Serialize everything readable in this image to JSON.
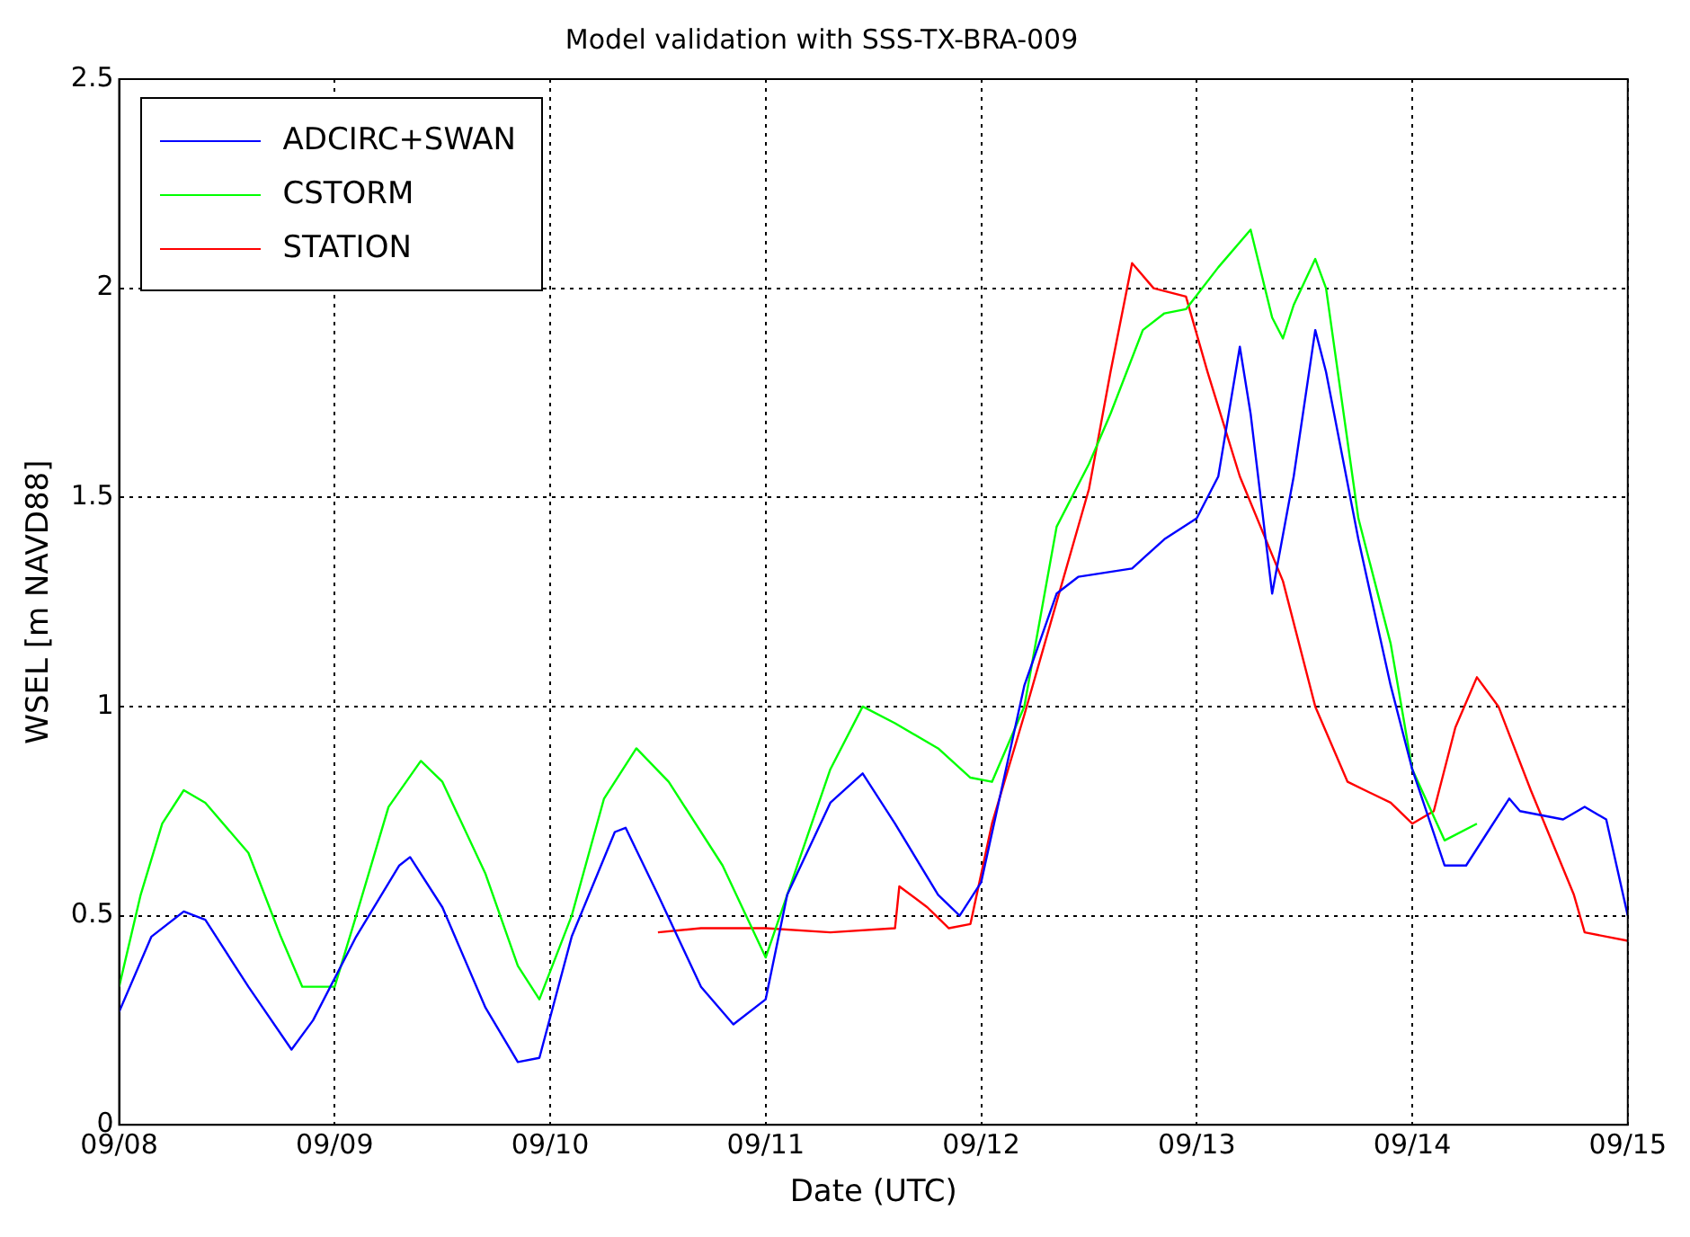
{
  "chart_data": {
    "type": "line",
    "title": "Model validation with SSS-TX-BRA-009",
    "xlabel": "Date (UTC)",
    "ylabel": "WSEL [m NAVD88]",
    "xlim": [
      "--09-08",
      "--09-15"
    ],
    "xticks": [
      {
        "value": "--09-08",
        "label": "09/08"
      },
      {
        "value": "--09-09",
        "label": "09/09"
      },
      {
        "value": "--09-10",
        "label": "09/10"
      },
      {
        "value": "--09-11",
        "label": "09/11"
      },
      {
        "value": "--09-12",
        "label": "09/12"
      },
      {
        "value": "--09-13",
        "label": "09/13"
      },
      {
        "value": "--09-14",
        "label": "09/14"
      },
      {
        "value": "--09-15",
        "label": "09/15"
      }
    ],
    "ylim": [
      0,
      2.5
    ],
    "yticks": [
      {
        "value": 0,
        "label": "0"
      },
      {
        "value": 0.5,
        "label": "0.5"
      },
      {
        "value": 1,
        "label": "1"
      },
      {
        "value": 1.5,
        "label": "1.5"
      },
      {
        "value": 2,
        "label": "2"
      },
      {
        "value": 2.5,
        "label": "2.5"
      }
    ],
    "grid": true,
    "legend": "top left",
    "marker": "none",
    "line_style": "solid",
    "series": [
      {
        "name": "ADCIRC+SWAN",
        "color": "#0000ff",
        "x": [
          "--09-08T00:00",
          "--09-08T03:36",
          "--09-08T07:12",
          "--09-08T09:36",
          "--09-08T14:24",
          "--09-08T19:12",
          "--09-08T21:36",
          "--09-09T02:24",
          "--09-09T07:12",
          "--09-09T08:24",
          "--09-09T12:00",
          "--09-09T16:48",
          "--09-09T20:24",
          "--09-09T22:48",
          "--09-10T02:24",
          "--09-10T07:12",
          "--09-10T08:24",
          "--09-10T12:00",
          "--09-10T16:48",
          "--09-10T20:24",
          "--09-11T00:00",
          "--09-11T02:24",
          "--09-11T07:12",
          "--09-11T10:48",
          "--09-11T14:24",
          "--09-11T19:12",
          "--09-11T21:36",
          "--09-12T00:00",
          "--09-12T04:48",
          "--09-12T08:24",
          "--09-12T10:48",
          "--09-12T16:48",
          "--09-12T20:24",
          "--09-13T00:00",
          "--09-13T02:24",
          "--09-13T04:48",
          "--09-13T06:00",
          "--09-13T08:24",
          "--09-13T10:48",
          "--09-13T13:12",
          "--09-13T14:24",
          "--09-13T18:00",
          "--09-13T21:36",
          "--09-14T00:00",
          "--09-14T03:36",
          "--09-14T06:00",
          "--09-14T08:24",
          "--09-14T10:48",
          "--09-14T12:00",
          "--09-14T16:48",
          "--09-14T19:12",
          "--09-14T21:36",
          "--09-15T00:00"
        ],
        "values": [
          0.27,
          0.45,
          0.51,
          0.49,
          0.33,
          0.18,
          0.25,
          0.45,
          0.62,
          0.64,
          0.52,
          0.28,
          0.15,
          0.16,
          0.45,
          0.7,
          0.71,
          0.55,
          0.33,
          0.24,
          0.3,
          0.55,
          0.77,
          0.84,
          0.72,
          0.55,
          0.5,
          0.58,
          1.05,
          1.27,
          1.31,
          1.33,
          1.4,
          1.45,
          1.55,
          1.86,
          1.7,
          1.27,
          1.55,
          1.9,
          1.8,
          1.4,
          1.05,
          0.85,
          0.62,
          0.62,
          0.7,
          0.78,
          0.75,
          0.73,
          0.76,
          0.73,
          0.5
        ]
      },
      {
        "name": "CSTORM",
        "color": "#00ff00",
        "x": [
          "--09-08T00:00",
          "--09-08T02:24",
          "--09-08T04:48",
          "--09-08T07:12",
          "--09-08T09:36",
          "--09-08T14:24",
          "--09-08T18:00",
          "--09-08T20:24",
          "--09-09T00:00",
          "--09-09T02:24",
          "--09-09T06:00",
          "--09-09T09:36",
          "--09-09T12:00",
          "--09-09T16:48",
          "--09-09T20:24",
          "--09-09T22:48",
          "--09-10T02:24",
          "--09-10T06:00",
          "--09-10T09:36",
          "--09-10T13:12",
          "--09-10T19:12",
          "--09-11T00:00",
          "--09-11T02:24",
          "--09-11T07:12",
          "--09-11T10:48",
          "--09-11T14:24",
          "--09-11T19:12",
          "--09-11T22:48",
          "--09-12T01:12",
          "--09-12T04:48",
          "--09-12T08:24",
          "--09-12T12:00",
          "--09-12T14:24",
          "--09-12T18:00",
          "--09-12T20:24",
          "--09-12T22:48",
          "--09-13T02:24",
          "--09-13T06:00",
          "--09-13T08:24",
          "--09-13T09:36",
          "--09-13T10:48",
          "--09-13T13:12",
          "--09-13T14:24",
          "--09-13T18:00",
          "--09-13T21:36",
          "--09-14T00:00",
          "--09-14T03:36",
          "--09-14T07:12"
        ],
        "values": [
          0.33,
          0.55,
          0.72,
          0.8,
          0.77,
          0.65,
          0.45,
          0.33,
          0.33,
          0.5,
          0.76,
          0.87,
          0.82,
          0.6,
          0.38,
          0.3,
          0.5,
          0.78,
          0.9,
          0.82,
          0.62,
          0.4,
          0.55,
          0.85,
          1.0,
          0.96,
          0.9,
          0.83,
          0.82,
          1.0,
          1.43,
          1.58,
          1.7,
          1.9,
          1.94,
          1.95,
          2.05,
          2.14,
          1.93,
          1.88,
          1.96,
          2.07,
          2.0,
          1.45,
          1.15,
          0.85,
          0.68,
          0.72
        ]
      },
      {
        "name": "STATION",
        "color": "#ff0000",
        "x": [
          "--09-10T12:00",
          "--09-10T16:48",
          "--09-11T00:00",
          "--09-11T07:12",
          "--09-11T14:24",
          "--09-11T14:53",
          "--09-11T18:00",
          "--09-11T20:24",
          "--09-11T22:48",
          "--09-12T01:12",
          "--09-12T04:48",
          "--09-12T08:24",
          "--09-12T12:00",
          "--09-12T14:24",
          "--09-12T16:48",
          "--09-12T19:12",
          "--09-12T22:48",
          "--09-13T01:12",
          "--09-13T04:48",
          "--09-13T09:36",
          "--09-13T13:12",
          "--09-13T16:48",
          "--09-13T21:36",
          "--09-14T00:00",
          "--09-14T02:24",
          "--09-14T04:48",
          "--09-14T07:12",
          "--09-14T09:36",
          "--09-14T13:12",
          "--09-14T18:00",
          "--09-14T19:12",
          "--09-15T00:00"
        ],
        "values": [
          0.46,
          0.47,
          0.47,
          0.46,
          0.47,
          0.57,
          0.52,
          0.47,
          0.48,
          0.72,
          0.98,
          1.25,
          1.52,
          1.8,
          2.06,
          2.0,
          1.98,
          1.8,
          1.55,
          1.3,
          1.0,
          0.82,
          0.77,
          0.72,
          0.75,
          0.95,
          1.07,
          1.0,
          0.8,
          0.55,
          0.46,
          0.44
        ]
      }
    ]
  }
}
